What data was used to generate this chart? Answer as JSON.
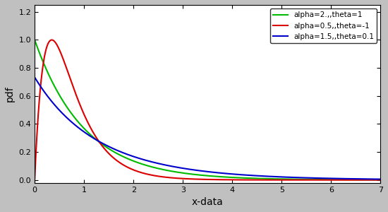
{
  "xlabel": "x-data",
  "ylabel": "pdf",
  "xlim": [
    0,
    7
  ],
  "ylim": [
    -0.02,
    1.25
  ],
  "yticks": [
    0,
    0.2,
    0.4,
    0.6,
    0.8,
    1.0,
    1.2
  ],
  "xticks": [
    0,
    1,
    2,
    3,
    4,
    5,
    6,
    7
  ],
  "series": [
    {
      "alpha": 2.0,
      "theta": 1.0,
      "color": "#00bb00",
      "label": "alpha=2.,,theta=1"
    },
    {
      "alpha": 0.5,
      "theta": -1.0,
      "color": "#dd0000",
      "label": "alpha=0.5,,theta=-1"
    },
    {
      "alpha": 1.5,
      "theta": 0.1,
      "color": "#0000cc",
      "label": "alpha=1.5,,theta=0.1"
    }
  ],
  "background_color": "#ffffff",
  "figure_bg": "#c0c0c0",
  "linewidth": 1.5
}
